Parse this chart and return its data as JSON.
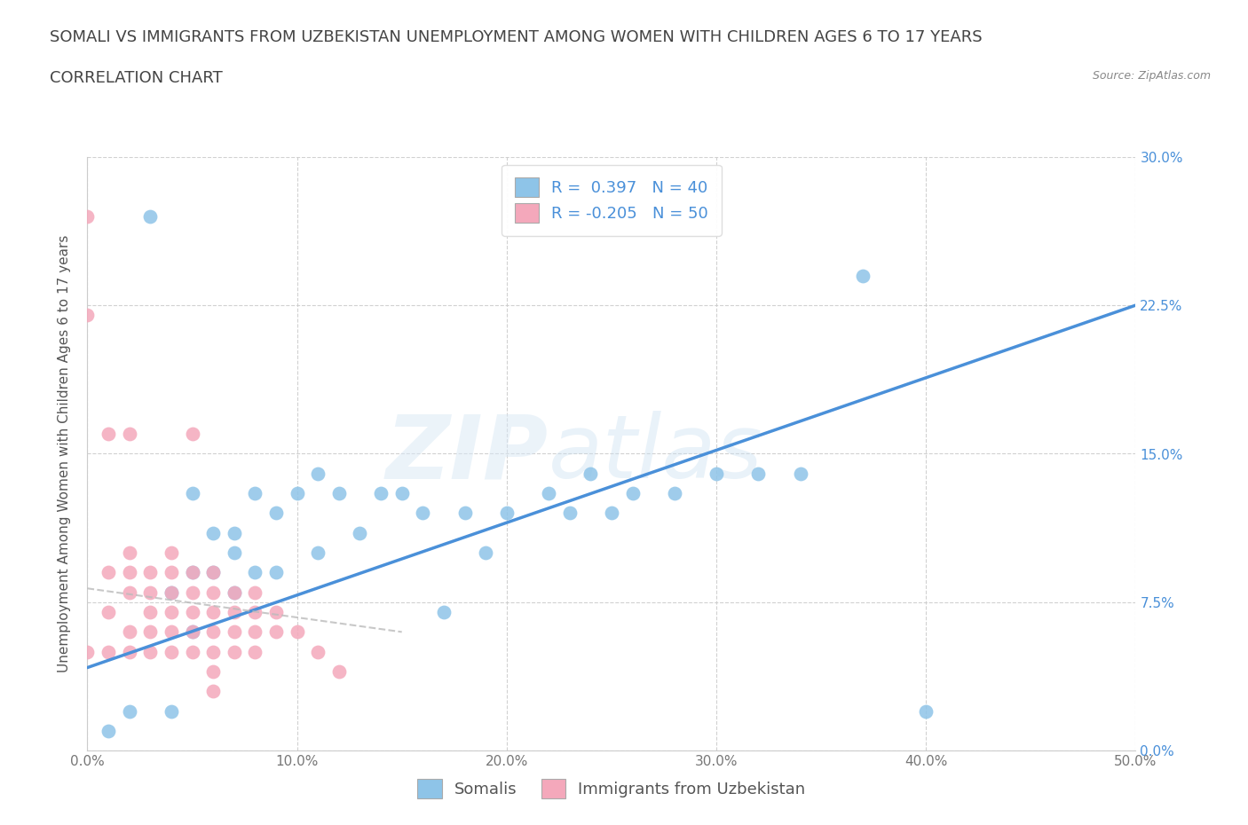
{
  "title": "SOMALI VS IMMIGRANTS FROM UZBEKISTAN UNEMPLOYMENT AMONG WOMEN WITH CHILDREN AGES 6 TO 17 YEARS",
  "subtitle": "CORRELATION CHART",
  "source": "Source: ZipAtlas.com",
  "ylabel": "Unemployment Among Women with Children Ages 6 to 17 years",
  "xlim": [
    0,
    0.5
  ],
  "ylim": [
    0,
    0.3
  ],
  "xticks": [
    0.0,
    0.1,
    0.2,
    0.3,
    0.4,
    0.5
  ],
  "yticks": [
    0.0,
    0.075,
    0.15,
    0.225,
    0.3
  ],
  "xticklabels": [
    "0.0%",
    "10.0%",
    "20.0%",
    "30.0%",
    "40.0%",
    "50.0%"
  ],
  "yticklabels_right": [
    "0.0%",
    "7.5%",
    "15.0%",
    "22.5%",
    "30.0%"
  ],
  "blue_R": 0.397,
  "blue_N": 40,
  "pink_R": -0.205,
  "pink_N": 50,
  "blue_color": "#8ec4e8",
  "pink_color": "#f4a8bb",
  "blue_line_color": "#4a90d9",
  "pink_line_color": "#e07090",
  "watermark": "ZIPatlas",
  "blue_scatter_x": [
    0.01,
    0.02,
    0.03,
    0.04,
    0.04,
    0.05,
    0.05,
    0.05,
    0.06,
    0.06,
    0.07,
    0.07,
    0.07,
    0.08,
    0.08,
    0.09,
    0.09,
    0.1,
    0.11,
    0.11,
    0.12,
    0.13,
    0.14,
    0.15,
    0.16,
    0.17,
    0.18,
    0.19,
    0.2,
    0.22,
    0.23,
    0.24,
    0.25,
    0.26,
    0.28,
    0.3,
    0.32,
    0.34,
    0.37,
    0.4
  ],
  "blue_scatter_y": [
    0.01,
    0.02,
    0.27,
    0.02,
    0.08,
    0.06,
    0.09,
    0.13,
    0.09,
    0.11,
    0.08,
    0.1,
    0.11,
    0.09,
    0.13,
    0.09,
    0.12,
    0.13,
    0.1,
    0.14,
    0.13,
    0.11,
    0.13,
    0.13,
    0.12,
    0.07,
    0.12,
    0.1,
    0.12,
    0.13,
    0.12,
    0.14,
    0.12,
    0.13,
    0.13,
    0.14,
    0.14,
    0.14,
    0.24,
    0.02
  ],
  "pink_scatter_x": [
    0.0,
    0.0,
    0.0,
    0.01,
    0.01,
    0.01,
    0.01,
    0.02,
    0.02,
    0.02,
    0.02,
    0.02,
    0.02,
    0.03,
    0.03,
    0.03,
    0.03,
    0.03,
    0.04,
    0.04,
    0.04,
    0.04,
    0.04,
    0.04,
    0.05,
    0.05,
    0.05,
    0.05,
    0.05,
    0.05,
    0.06,
    0.06,
    0.06,
    0.06,
    0.06,
    0.06,
    0.06,
    0.07,
    0.07,
    0.07,
    0.07,
    0.08,
    0.08,
    0.08,
    0.08,
    0.09,
    0.09,
    0.1,
    0.11,
    0.12
  ],
  "pink_scatter_y": [
    0.05,
    0.27,
    0.22,
    0.16,
    0.09,
    0.07,
    0.05,
    0.16,
    0.1,
    0.09,
    0.08,
    0.06,
    0.05,
    0.09,
    0.08,
    0.07,
    0.06,
    0.05,
    0.1,
    0.09,
    0.08,
    0.07,
    0.06,
    0.05,
    0.09,
    0.08,
    0.07,
    0.06,
    0.05,
    0.16,
    0.09,
    0.08,
    0.07,
    0.06,
    0.05,
    0.04,
    0.03,
    0.08,
    0.07,
    0.06,
    0.05,
    0.08,
    0.07,
    0.06,
    0.05,
    0.07,
    0.06,
    0.06,
    0.05,
    0.04
  ],
  "blue_line_x0": 0.0,
  "blue_line_y0": 0.042,
  "blue_line_x1": 0.5,
  "blue_line_y1": 0.225,
  "pink_line_x0": 0.0,
  "pink_line_y0": 0.082,
  "pink_line_x1": 0.15,
  "pink_line_y1": 0.06,
  "background_color": "#ffffff",
  "grid_color": "#cccccc",
  "title_fontsize": 13,
  "subtitle_fontsize": 13,
  "axis_label_fontsize": 11,
  "tick_fontsize": 11,
  "legend_fontsize": 13
}
